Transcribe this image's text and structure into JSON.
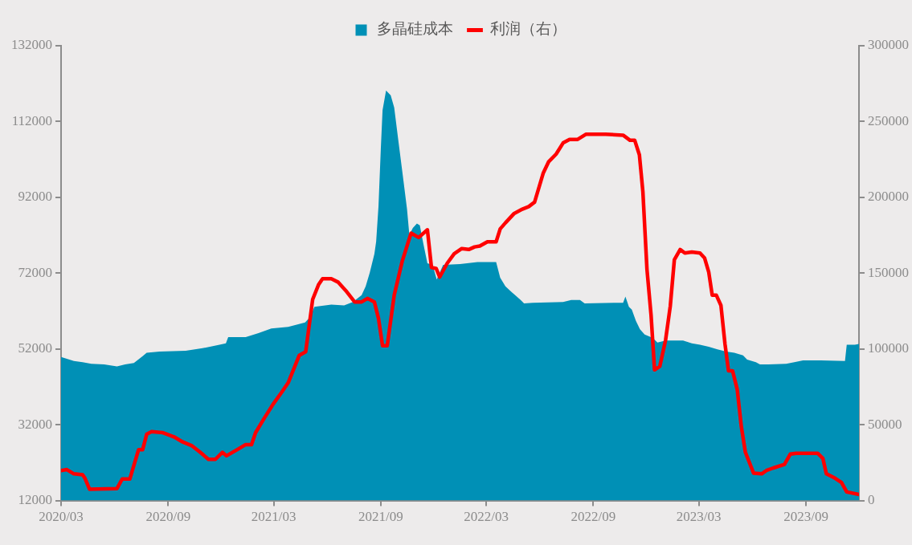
{
  "chart_data": {
    "type": "area",
    "legend": "top",
    "xlim": [
      "2020-03",
      "2023-12"
    ],
    "xticks": [
      {
        "value": "2020-03",
        "label": "2020/03"
      },
      {
        "value": "2020-09",
        "label": "2020/09"
      },
      {
        "value": "2021-03",
        "label": "2021/03"
      },
      {
        "value": "2021-09",
        "label": "2021/09"
      },
      {
        "value": "2022-03",
        "label": "2022/03"
      },
      {
        "value": "2022-09",
        "label": "2022/09"
      },
      {
        "value": "2023-03",
        "label": "2023/03"
      },
      {
        "value": "2023-09",
        "label": "2023/09"
      }
    ],
    "ylim": [
      12000,
      132000
    ],
    "yticks": [
      12000,
      32000,
      52000,
      72000,
      92000,
      112000,
      132000
    ],
    "y2lim": [
      0,
      300000
    ],
    "y2ticks": [
      0,
      50000,
      100000,
      150000,
      200000,
      250000,
      300000
    ],
    "series": [
      {
        "name": "多晶硅成本",
        "type": "area",
        "color": "#0090b6",
        "x": [
          "2020-03-01",
          "2020-03-23",
          "2020-04-07",
          "2020-04-22",
          "2020-05-14",
          "2020-06-05",
          "2020-06-19",
          "2020-07-04",
          "2020-07-19",
          "2020-07-26",
          "2020-08-17",
          "2020-10-01",
          "2020-10-30",
          "2020-11-28",
          "2020-12-09",
          "2020-12-13",
          "2021-01-12",
          "2021-02-03",
          "2021-02-25",
          "2021-03-26",
          "2021-04-24",
          "2021-05-02",
          "2021-05-10",
          "2021-06-08",
          "2021-06-30",
          "2021-07-15",
          "2021-07-30",
          "2021-08-06",
          "2021-08-13",
          "2021-08-21",
          "2021-08-24",
          "2021-08-28",
          "2021-09-01",
          "2021-09-04",
          "2021-09-10",
          "2021-09-18",
          "2021-09-24",
          "2021-10-01",
          "2021-10-08",
          "2021-10-16",
          "2021-10-20",
          "2021-10-26",
          "2021-11-02",
          "2021-11-07",
          "2021-11-13",
          "2021-11-20",
          "2021-11-29",
          "2021-12-06",
          "2021-12-17",
          "2022-01-15",
          "2022-02-14",
          "2022-03-18",
          "2022-03-25",
          "2022-04-03",
          "2022-04-13",
          "2022-04-28",
          "2022-05-05",
          "2022-05-20",
          "2022-07-11",
          "2022-07-25",
          "2022-08-09",
          "2022-08-17",
          "2022-10-07",
          "2022-10-22",
          "2022-10-26",
          "2022-11-01",
          "2022-11-06",
          "2022-11-13",
          "2022-11-20",
          "2022-11-28",
          "2022-12-12",
          "2022-12-20",
          "2023-01-03",
          "2023-02-02",
          "2023-02-17",
          "2023-03-03",
          "2023-03-18",
          "2023-04-02",
          "2023-04-17",
          "2023-05-01",
          "2023-05-16",
          "2023-05-23",
          "2023-06-07",
          "2023-06-14",
          "2023-06-29",
          "2023-07-29",
          "2023-08-12",
          "2023-08-27",
          "2023-09-26",
          "2023-11-07",
          "2023-11-10",
          "2023-11-24",
          "2023-12-01"
        ],
        "values": [
          49900,
          48800,
          48500,
          48100,
          47900,
          47400,
          47900,
          48300,
          50100,
          51000,
          51300,
          51500,
          52200,
          53100,
          53500,
          55100,
          55100,
          56200,
          57400,
          57800,
          59000,
          60300,
          63100,
          63700,
          63500,
          64400,
          66200,
          68500,
          72100,
          77100,
          80300,
          89600,
          104800,
          115000,
          120200,
          118900,
          115700,
          107100,
          98700,
          88900,
          82100,
          83900,
          85100,
          84600,
          79800,
          74600,
          74200,
          70300,
          74200,
          74400,
          74900,
          74900,
          70800,
          68500,
          67100,
          65100,
          64000,
          64200,
          64400,
          64900,
          64900,
          64000,
          64200,
          64200,
          65800,
          63100,
          62400,
          59400,
          57200,
          55800,
          54900,
          53700,
          54200,
          54200,
          53500,
          53100,
          52600,
          51900,
          51300,
          51000,
          50300,
          49200,
          48500,
          47900,
          47900,
          48100,
          48500,
          49000,
          49000,
          48800,
          53100,
          53100,
          53300
        ]
      },
      {
        "name": "利润（右）",
        "type": "line",
        "axis": "y2",
        "color": "#ff0000",
        "x": [
          "2020-03-01",
          "2020-03-11",
          "2020-03-23",
          "2020-04-07",
          "2020-04-11",
          "2020-04-19",
          "2020-06-05",
          "2020-06-14",
          "2020-06-27",
          "2020-07-12",
          "2020-07-19",
          "2020-07-26",
          "2020-08-03",
          "2020-08-22",
          "2020-09-11",
          "2020-09-26",
          "2020-10-11",
          "2020-10-26",
          "2020-11-09",
          "2020-11-21",
          "2020-12-03",
          "2020-12-10",
          "2020-12-28",
          "2021-01-12",
          "2021-01-22",
          "2021-01-29",
          "2021-02-13",
          "2021-02-28",
          "2021-03-15",
          "2021-03-26",
          "2021-04-14",
          "2021-04-25",
          "2021-05-07",
          "2021-05-17",
          "2021-05-24",
          "2021-06-08",
          "2021-06-20",
          "2021-07-03",
          "2021-07-18",
          "2021-07-30",
          "2021-08-09",
          "2021-08-21",
          "2021-08-28",
          "2021-09-04",
          "2021-09-12",
          "2021-09-24",
          "2021-10-08",
          "2021-10-23",
          "2021-11-05",
          "2021-11-20",
          "2021-11-27",
          "2021-12-05",
          "2021-12-11",
          "2021-12-24",
          "2022-01-05",
          "2022-01-18",
          "2022-01-30",
          "2022-02-09",
          "2022-02-18",
          "2022-03-03",
          "2022-03-18",
          "2022-03-25",
          "2022-04-03",
          "2022-04-18",
          "2022-05-02",
          "2022-05-13",
          "2022-05-23",
          "2022-06-07",
          "2022-06-16",
          "2022-06-29",
          "2022-07-11",
          "2022-07-22",
          "2022-08-05",
          "2022-08-19",
          "2022-09-22",
          "2022-10-22",
          "2022-11-03",
          "2022-11-11",
          "2022-11-19",
          "2022-11-25",
          "2022-12-02",
          "2022-12-09",
          "2022-12-15",
          "2022-12-24",
          "2023-01-03",
          "2023-01-11",
          "2023-01-18",
          "2023-01-28",
          "2023-02-05",
          "2023-02-17",
          "2023-03-03",
          "2023-03-11",
          "2023-03-18",
          "2023-03-24",
          "2023-03-31",
          "2023-04-08",
          "2023-04-15",
          "2023-04-21",
          "2023-04-28",
          "2023-05-06",
          "2023-05-13",
          "2023-05-20",
          "2023-06-03",
          "2023-06-17",
          "2023-06-25",
          "2023-07-07",
          "2023-07-26",
          "2023-08-05",
          "2023-08-15",
          "2023-09-21",
          "2023-09-30",
          "2023-10-06",
          "2023-10-21",
          "2023-11-01",
          "2023-11-10",
          "2023-12-01"
        ],
        "values": [
          19800,
          20400,
          17600,
          17000,
          14700,
          7400,
          7900,
          14200,
          14200,
          33500,
          33500,
          43700,
          45400,
          44800,
          42000,
          38600,
          36300,
          31800,
          27200,
          27200,
          31800,
          29500,
          33500,
          36900,
          36900,
          44800,
          54400,
          63500,
          71500,
          77700,
          95800,
          98100,
          132700,
          142300,
          146300,
          146300,
          144000,
          138400,
          131000,
          131000,
          133300,
          131000,
          120200,
          102100,
          102100,
          135500,
          158200,
          176400,
          173500,
          178600,
          153700,
          153100,
          147400,
          156500,
          162800,
          166200,
          165600,
          167300,
          167900,
          170700,
          170700,
          179200,
          183200,
          189400,
          192200,
          193900,
          196800,
          216100,
          223400,
          228500,
          235900,
          238200,
          238200,
          241600,
          241600,
          241000,
          237600,
          237600,
          228000,
          203600,
          152500,
          122500,
          86200,
          88500,
          106000,
          128200,
          158800,
          165600,
          163300,
          163900,
          163300,
          159900,
          150800,
          135500,
          135500,
          128700,
          103200,
          85600,
          85600,
          73200,
          48800,
          31800,
          18100,
          17600,
          19800,
          21500,
          23800,
          30600,
          31200,
          31200,
          27800,
          17600,
          14700,
          11900,
          5700,
          4000
        ]
      }
    ]
  }
}
